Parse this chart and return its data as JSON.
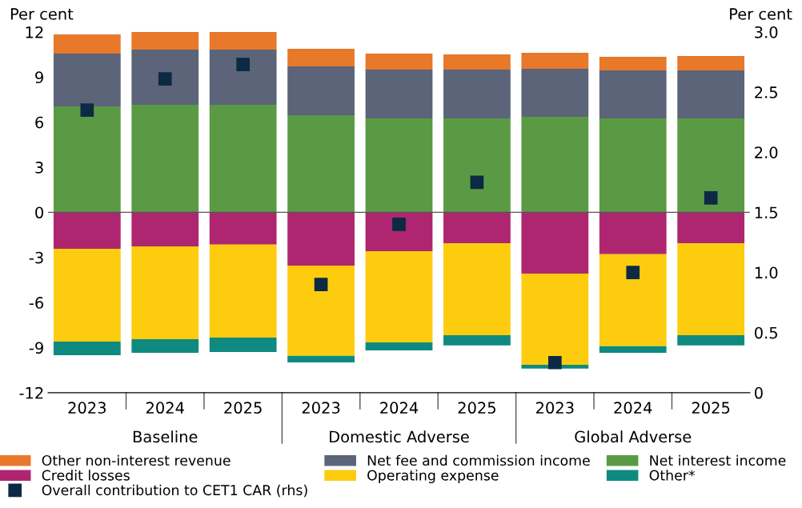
{
  "chart_data": {
    "type": "bar",
    "stacked": true,
    "ylabel": "Per cent",
    "y2label": "Per cent",
    "categories": [
      "2023",
      "2024",
      "2025",
      "2023",
      "2024",
      "2025",
      "2023",
      "2024",
      "2025"
    ],
    "annotations": [
      "Baseline",
      "Domestic Adverse",
      "Global Adverse"
    ],
    "ylim": [
      -12,
      12
    ],
    "yticks": [
      -12,
      -9,
      -6,
      -3,
      0,
      3,
      6,
      9,
      12
    ],
    "y2lim": [
      0,
      3
    ],
    "y2ticks": [
      0,
      {
        "value": 0.5,
        "label": "0.5"
      },
      {
        "value": 1,
        "label": "1.0"
      },
      {
        "value": 1.5,
        "label": "1.5"
      },
      {
        "value": 2,
        "label": "2.0"
      },
      {
        "value": 2.5,
        "label": "2.5"
      },
      {
        "value": 3,
        "label": "3.0"
      }
    ],
    "ref_lines": [
      {
        "axis": "y",
        "value": 0,
        "color": "#555555"
      }
    ],
    "legend": "bottom",
    "series": [
      {
        "name": "Net interest income",
        "color": "#5a9a45",
        "values": [
          7.05,
          7.16,
          7.16,
          6.47,
          6.25,
          6.25,
          6.36,
          6.25,
          6.25
        ]
      },
      {
        "name": "Net fee and commission income",
        "color": "#5b6478",
        "values": [
          3.51,
          3.67,
          3.67,
          3.24,
          3.25,
          3.25,
          3.19,
          3.2,
          3.2
        ]
      },
      {
        "name": "Other non-interest revenue",
        "color": "#e8782a",
        "values": [
          1.28,
          1.17,
          1.17,
          1.17,
          1.06,
          1.01,
          1.07,
          0.9,
          0.95
        ]
      },
      {
        "name": "Credit losses",
        "color": "#ae2670",
        "values": [
          -2.42,
          -2.26,
          -2.15,
          -3.54,
          -2.58,
          -2.05,
          -4.07,
          -2.79,
          -2.05
        ]
      },
      {
        "name": "Operating expense",
        "color": "#fdcc0e",
        "values": [
          -6.18,
          -6.18,
          -6.18,
          -6.01,
          -6.07,
          -6.12,
          -6.07,
          -6.12,
          -6.12
        ]
      },
      {
        "name": "Other*",
        "color": "#0f8a80",
        "values": [
          -0.9,
          -0.9,
          -0.96,
          -0.43,
          -0.53,
          -0.69,
          -0.26,
          -0.43,
          -0.69
        ]
      },
      {
        "name": "Overall contribution to CET1 CAR (rhs)",
        "type": "scatter",
        "axis": "y2",
        "marker": "square",
        "color": "#0c2a44",
        "values": [
          2.35,
          2.61,
          2.73,
          0.9,
          1.4,
          1.75,
          0.25,
          1.0,
          1.62
        ]
      }
    ]
  }
}
